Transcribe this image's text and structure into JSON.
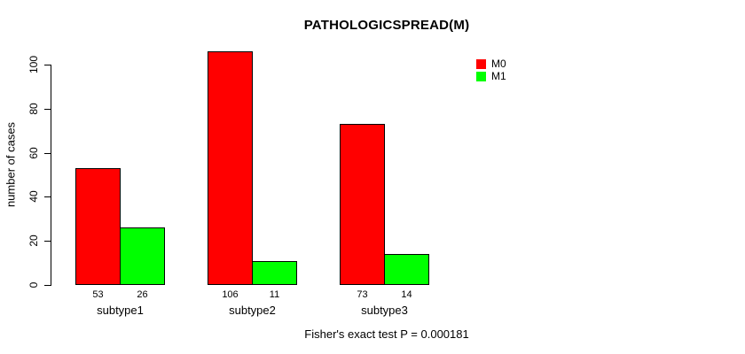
{
  "title": "PATHOLOGICSPREAD(M)",
  "footer_note": "Fisher's exact test P = 0.000181",
  "colors": {
    "m0": "#FF0000",
    "m1": "#00FF00",
    "axis": "#000000",
    "background": "#FFFFFF"
  },
  "chart_data": {
    "type": "bar",
    "title": "PATHOLOGICSPREAD(M)",
    "categories": [
      "subtype1",
      "subtype2",
      "subtype3"
    ],
    "series": [
      {
        "name": "M0",
        "color": "#FF0000",
        "values": [
          53,
          106,
          73
        ]
      },
      {
        "name": "M1",
        "color": "#00FF00",
        "values": [
          26,
          11,
          14
        ]
      }
    ],
    "xlabel": "",
    "ylabel": "number of cases",
    "yticks": [
      0,
      20,
      40,
      60,
      80,
      100
    ],
    "ylim": [
      0,
      110
    ],
    "grid": false,
    "bar_value_labels_shown": true,
    "legend_position": "top-right",
    "annotation": "Fisher's exact test P = 0.000181"
  }
}
